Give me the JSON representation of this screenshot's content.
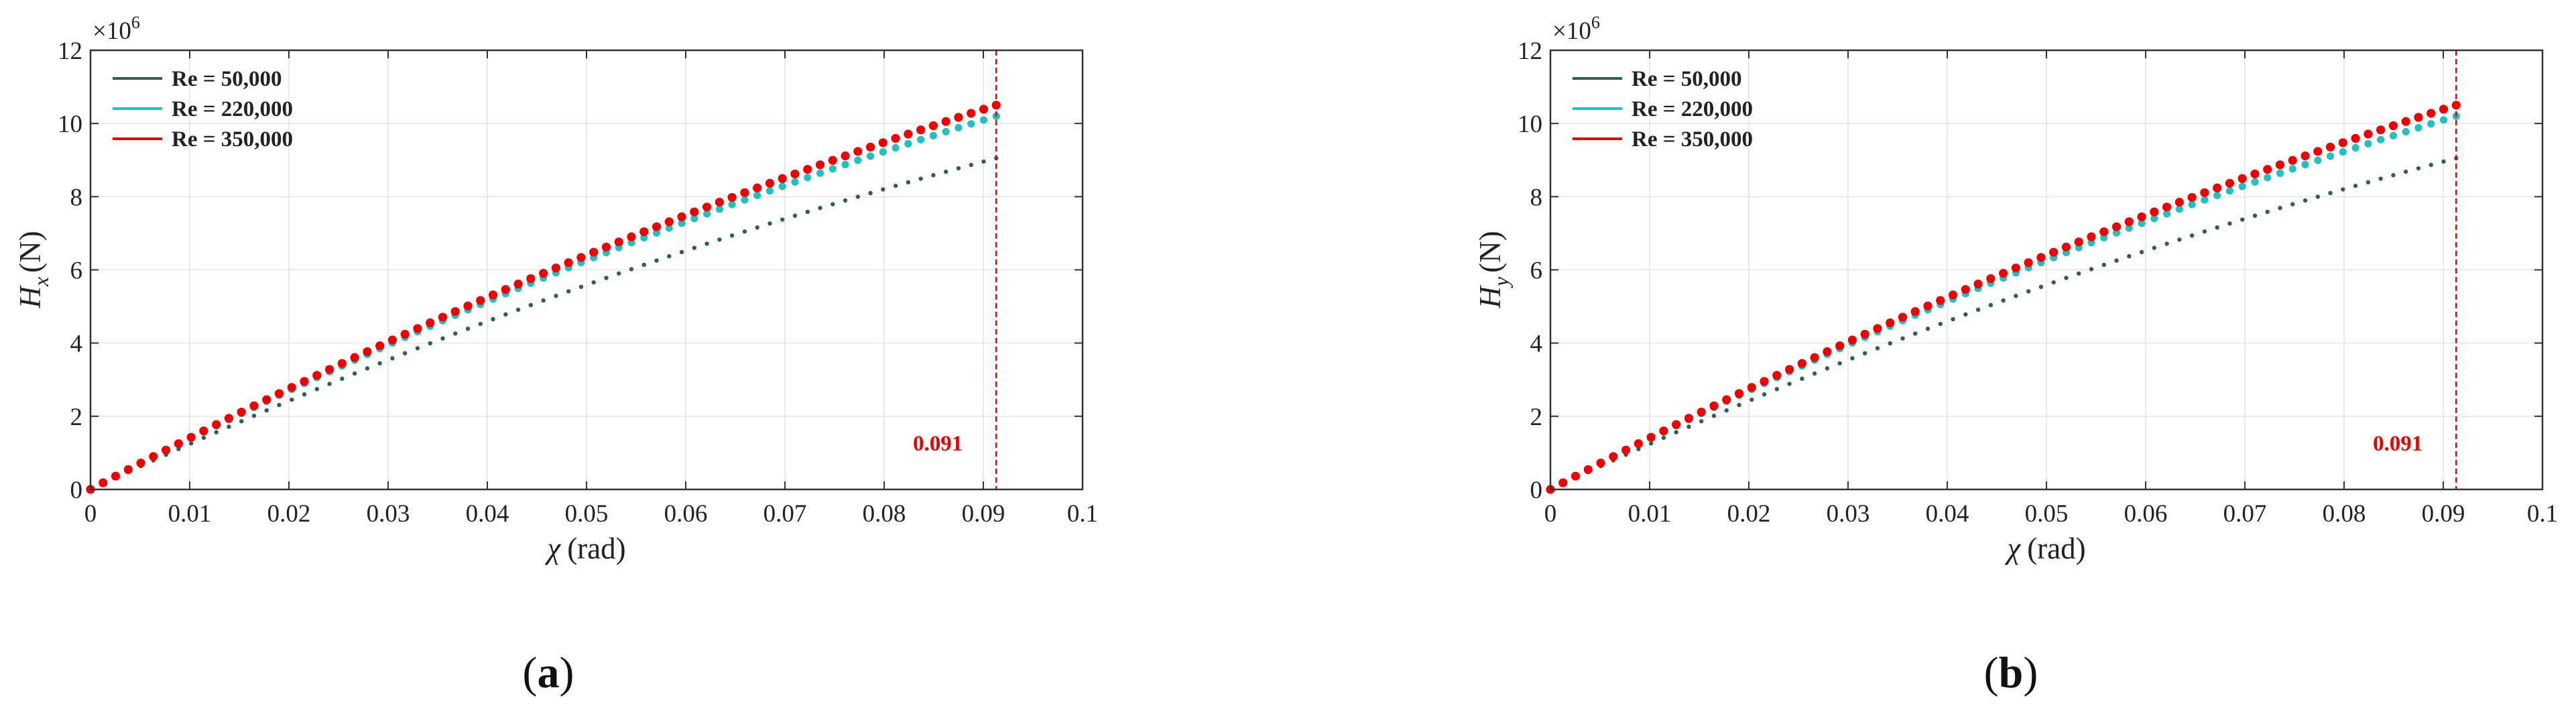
{
  "colors": {
    "re_50000": "#2f5f4f",
    "re_220000": "#22c0c0",
    "re_350000": "#ee0000",
    "annotation": "#ee0000",
    "grid": "#e4e4e4",
    "axes": "#333333"
  },
  "chart_data": [
    {
      "type": "scatter",
      "panel_label": "(a)",
      "panel_label_parts": [
        "(",
        "a",
        ")"
      ],
      "xlabel": "χ (rad)",
      "xlabel_symbol": "χ",
      "xlabel_unit": "(rad)",
      "ylabel": "Hx (N)",
      "ylabel_symbol": "H",
      "ylabel_subscript": "x",
      "ylabel_unit": "(N)",
      "y_multiplier": "×10^6",
      "y_multiplier_base": "×10",
      "y_multiplier_exp": "6",
      "xlim": [
        0,
        0.1
      ],
      "ylim": [
        0,
        12
      ],
      "xticks": [
        0,
        0.01,
        0.02,
        0.03,
        0.04,
        0.05,
        0.06,
        0.07,
        0.08,
        0.09,
        0.1
      ],
      "xtick_labels": [
        "0",
        "0.01",
        "0.02",
        "0.03",
        "0.04",
        "0.05",
        "0.06",
        "0.07",
        "0.08",
        "0.09",
        "0.1"
      ],
      "yticks": [
        0,
        2,
        4,
        6,
        8,
        10,
        12
      ],
      "ytick_labels": [
        "0",
        "2",
        "4",
        "6",
        "8",
        "10",
        "12"
      ],
      "grid": true,
      "legend_position": "top-left",
      "annotation": {
        "label": "0.091",
        "x": 0.0913
      },
      "series": [
        {
          "name": "Re = 50,000",
          "color_key": "re_50000",
          "marker_size": "small",
          "end_x": 0.0913,
          "end_y": 9.05,
          "curvature": 0.22
        },
        {
          "name": "Re = 220,000",
          "color_key": "re_220000",
          "marker_size": "medium",
          "end_x": 0.0913,
          "end_y": 10.2,
          "curvature": 0.21
        },
        {
          "name": "Re = 350,000",
          "color_key": "re_350000",
          "marker_size": "large",
          "end_x": 0.0913,
          "end_y": 10.5,
          "curvature": 0.2
        }
      ]
    },
    {
      "type": "scatter",
      "panel_label": "(b)",
      "panel_label_parts": [
        "(",
        "b",
        ")"
      ],
      "xlabel": "χ (rad)",
      "xlabel_symbol": "χ",
      "xlabel_unit": "(rad)",
      "ylabel": "Hy (N)",
      "ylabel_symbol": "H",
      "ylabel_subscript": "y",
      "ylabel_unit": "(N)",
      "y_multiplier": "×10^6",
      "y_multiplier_base": "×10",
      "y_multiplier_exp": "6",
      "xlim": [
        0,
        0.1
      ],
      "ylim": [
        0,
        12
      ],
      "xticks": [
        0,
        0.01,
        0.02,
        0.03,
        0.04,
        0.05,
        0.06,
        0.07,
        0.08,
        0.09,
        0.1
      ],
      "xtick_labels": [
        "0",
        "0.01",
        "0.02",
        "0.03",
        "0.04",
        "0.05",
        "0.06",
        "0.07",
        "0.08",
        "0.09",
        "0.1"
      ],
      "yticks": [
        0,
        2,
        4,
        6,
        8,
        10,
        12
      ],
      "ytick_labels": [
        "0",
        "2",
        "4",
        "6",
        "8",
        "10",
        "12"
      ],
      "grid": true,
      "legend_position": "top-left",
      "annotation": {
        "label": "0.091",
        "x": 0.0913
      },
      "series": [
        {
          "name": "Re = 50,000",
          "color_key": "re_50000",
          "marker_size": "small",
          "end_x": 0.0913,
          "end_y": 9.05,
          "curvature": 0.22
        },
        {
          "name": "Re = 220,000",
          "color_key": "re_220000",
          "marker_size": "medium",
          "end_x": 0.0913,
          "end_y": 10.2,
          "curvature": 0.21
        },
        {
          "name": "Re = 350,000",
          "color_key": "re_350000",
          "marker_size": "large",
          "end_x": 0.0913,
          "end_y": 10.5,
          "curvature": 0.2
        }
      ]
    }
  ]
}
